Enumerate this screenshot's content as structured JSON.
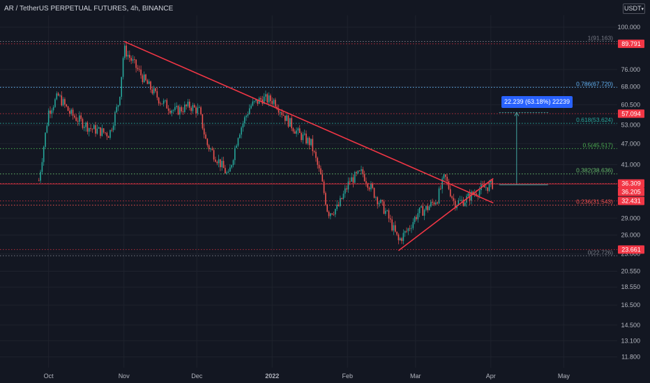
{
  "header": {
    "title": "AR / TetherUS PERPETUAL FUTURES, 4h, BINANCE",
    "currency": "USDT",
    "currency_chevron": "▾"
  },
  "colors": {
    "background": "#131722",
    "up": "#26a69a",
    "down": "#ef5350",
    "trendline": "#f23645",
    "fib": "#42a5a0",
    "fib_786": "#64b5f6",
    "fib_0382": "#66bb6a",
    "measure": "#2962ff",
    "grid": "#1e222d",
    "axis_text": "#b2b5be"
  },
  "chart_data": {
    "type": "candlestick",
    "scale": "log",
    "x_ticks": [
      "Oct",
      "Nov",
      "Dec",
      "2022",
      "Feb",
      "Mar",
      "Apr",
      "May"
    ],
    "y_ticks": [
      "100.000",
      "76.000",
      "68.000",
      "60.500",
      "53.000",
      "47.000",
      "41.000",
      "29.000",
      "26.000",
      "23.000",
      "20.550",
      "18.550",
      "16.500",
      "14.500",
      "13.100",
      "11.800"
    ],
    "price_labels": [
      {
        "text": "89.791",
        "value": 89.791,
        "color": "#f23645",
        "line": "dotted"
      },
      {
        "text": "57.094",
        "value": 57.094,
        "color": "#f23645",
        "line": "dotted"
      },
      {
        "text": "36.309",
        "value": 36.309,
        "color": "#f23645",
        "line": "dotted"
      },
      {
        "text": "36.205",
        "value": 36.205,
        "color": "#f23645",
        "line": "solid"
      },
      {
        "text": "32.431",
        "value": 32.431,
        "color": "#f23645",
        "line": "dotted"
      },
      {
        "text": "23.661",
        "value": 23.661,
        "color": "#f23645",
        "line": "dotted"
      }
    ],
    "fib_levels": [
      {
        "label": "1(91.163)",
        "value": 91.163,
        "color": "#787b86"
      },
      {
        "label": "0.786(67.720)",
        "value": 67.72,
        "color": "#64b5f6"
      },
      {
        "label": "0.618(53.624)",
        "value": 53.624,
        "color": "#26a69a"
      },
      {
        "label": "0.5(45.517)",
        "value": 45.517,
        "color": "#4caf50"
      },
      {
        "label": "0.382(38.636)",
        "value": 38.636,
        "color": "#66bb6a"
      },
      {
        "label": "0.236(31.543)",
        "value": 31.543,
        "color": "#ef5350"
      },
      {
        "label": "0(22.726)",
        "value": 22.726,
        "color": "#787b86"
      }
    ],
    "measure": {
      "text": "22.239 (63.18%) 22239",
      "from": 36.0,
      "to": 57.5,
      "date": "2022-04-03"
    },
    "trendlines": [
      {
        "name": "descending-resistance",
        "from": {
          "date": "2021-11-01",
          "price": 91.2
        },
        "to": {
          "date": "2022-04-02",
          "price": 32.0
        }
      },
      {
        "name": "ascending-support",
        "from": {
          "date": "2022-02-22",
          "price": 23.5
        },
        "to": {
          "date": "2022-04-02",
          "price": 37.5
        }
      }
    ],
    "price_path": [
      {
        "date": "2021-09-27",
        "price": 37.0
      },
      {
        "date": "2021-10-01",
        "price": 58.0
      },
      {
        "date": "2021-10-05",
        "price": 64.0
      },
      {
        "date": "2021-10-10",
        "price": 57.0
      },
      {
        "date": "2021-10-18",
        "price": 52.0
      },
      {
        "date": "2021-10-26",
        "price": 50.0
      },
      {
        "date": "2021-10-30",
        "price": 62.0
      },
      {
        "date": "2021-11-01",
        "price": 87.0
      },
      {
        "date": "2021-11-05",
        "price": 79.0
      },
      {
        "date": "2021-11-10",
        "price": 70.0
      },
      {
        "date": "2021-11-16",
        "price": 62.0
      },
      {
        "date": "2021-11-22",
        "price": 58.0
      },
      {
        "date": "2021-11-28",
        "price": 60.0
      },
      {
        "date": "2021-12-02",
        "price": 58.0
      },
      {
        "date": "2021-12-05",
        "price": 47.0
      },
      {
        "date": "2021-12-10",
        "price": 42.0
      },
      {
        "date": "2021-12-14",
        "price": 38.0
      },
      {
        "date": "2021-12-18",
        "price": 50.0
      },
      {
        "date": "2021-12-23",
        "price": 60.0
      },
      {
        "date": "2021-12-28",
        "price": 63.0
      },
      {
        "date": "2022-01-02",
        "price": 62.0
      },
      {
        "date": "2022-01-07",
        "price": 55.0
      },
      {
        "date": "2022-01-12",
        "price": 50.0
      },
      {
        "date": "2022-01-17",
        "price": 47.0
      },
      {
        "date": "2022-01-21",
        "price": 38.0
      },
      {
        "date": "2022-01-24",
        "price": 30.0
      },
      {
        "date": "2022-01-28",
        "price": 31.0
      },
      {
        "date": "2022-02-02",
        "price": 37.0
      },
      {
        "date": "2022-02-07",
        "price": 39.0
      },
      {
        "date": "2022-02-12",
        "price": 34.0
      },
      {
        "date": "2022-02-17",
        "price": 30.0
      },
      {
        "date": "2022-02-22",
        "price": 25.0
      },
      {
        "date": "2022-02-26",
        "price": 27.0
      },
      {
        "date": "2022-03-02",
        "price": 30.0
      },
      {
        "date": "2022-03-06",
        "price": 31.0
      },
      {
        "date": "2022-03-10",
        "price": 33.0
      },
      {
        "date": "2022-03-13",
        "price": 38.0
      },
      {
        "date": "2022-03-17",
        "price": 32.0
      },
      {
        "date": "2022-03-21",
        "price": 32.5
      },
      {
        "date": "2022-03-26",
        "price": 34.5
      },
      {
        "date": "2022-03-30",
        "price": 35.5
      },
      {
        "date": "2022-04-02",
        "price": 36.2
      }
    ],
    "x_range": [
      "2021-09-11",
      "2022-05-23"
    ],
    "y_range": [
      11.0,
      108.0
    ]
  }
}
